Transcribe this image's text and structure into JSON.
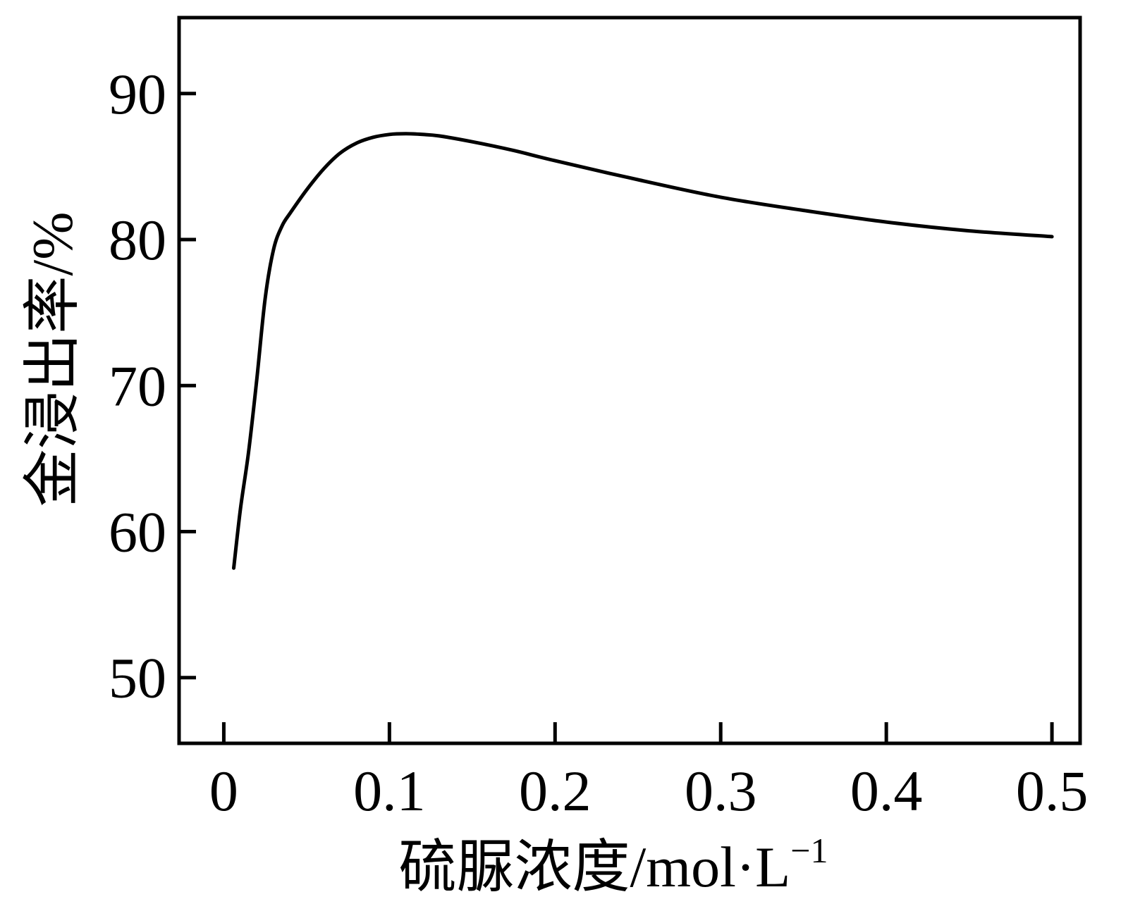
{
  "chart_data": {
    "type": "line",
    "title": "",
    "xlabel": "硫脲浓度/mol·L",
    "xlabel_sup": "−1",
    "ylabel": "金浸出率/%",
    "xlim": [
      -0.027,
      0.517
    ],
    "ylim": [
      45.5,
      95.2
    ],
    "xticks": [
      0,
      0.1,
      0.2,
      0.3,
      0.4,
      0.5
    ],
    "xtick_labels": [
      "0",
      "0.1",
      "0.2",
      "0.3",
      "0.4",
      "0.5"
    ],
    "yticks": [
      50,
      60,
      70,
      80,
      90
    ],
    "ytick_labels": [
      "50",
      "60",
      "70",
      "80",
      "90"
    ],
    "grid": false,
    "legend": false,
    "line_color": "#000000",
    "series": [
      {
        "x": [
          0.006,
          0.01,
          0.015,
          0.02,
          0.025,
          0.03,
          0.035,
          0.04,
          0.05,
          0.06,
          0.07,
          0.08,
          0.09,
          0.1,
          0.11,
          0.12,
          0.13,
          0.15,
          0.175,
          0.2,
          0.25,
          0.3,
          0.35,
          0.4,
          0.45,
          0.5
        ],
        "y": [
          57.5,
          61.5,
          65.5,
          70.5,
          76.0,
          79.3,
          80.9,
          81.8,
          83.4,
          84.8,
          85.9,
          86.6,
          87.0,
          87.2,
          87.25,
          87.2,
          87.1,
          86.7,
          86.1,
          85.4,
          84.1,
          82.9,
          82.0,
          81.2,
          80.6,
          80.2
        ]
      }
    ]
  }
}
